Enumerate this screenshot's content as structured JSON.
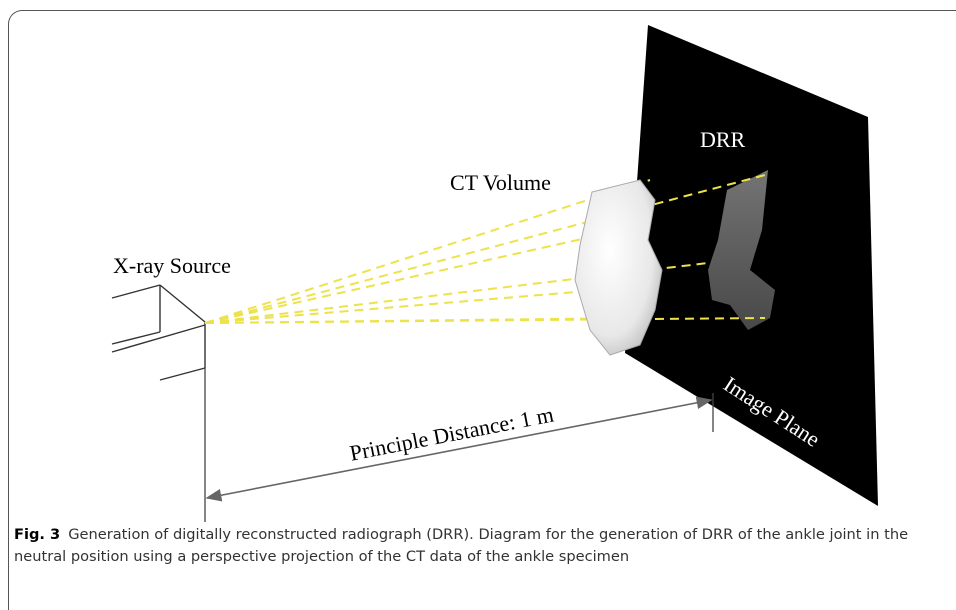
{
  "figure": {
    "labels": {
      "xray_source": "X-ray Source",
      "ct_volume": "CT Volume",
      "drr": "DRR",
      "image_plane": "Image Plane",
      "distance": "Principle Distance: 1 m"
    }
  },
  "caption": {
    "label": "Fig. 3",
    "text": "Generation of digitally reconstructed radiograph (DRR). Diagram for the generation of DRR of the ankle joint in the neutral position using a perspective projection of the CT data of the ankle specimen"
  }
}
